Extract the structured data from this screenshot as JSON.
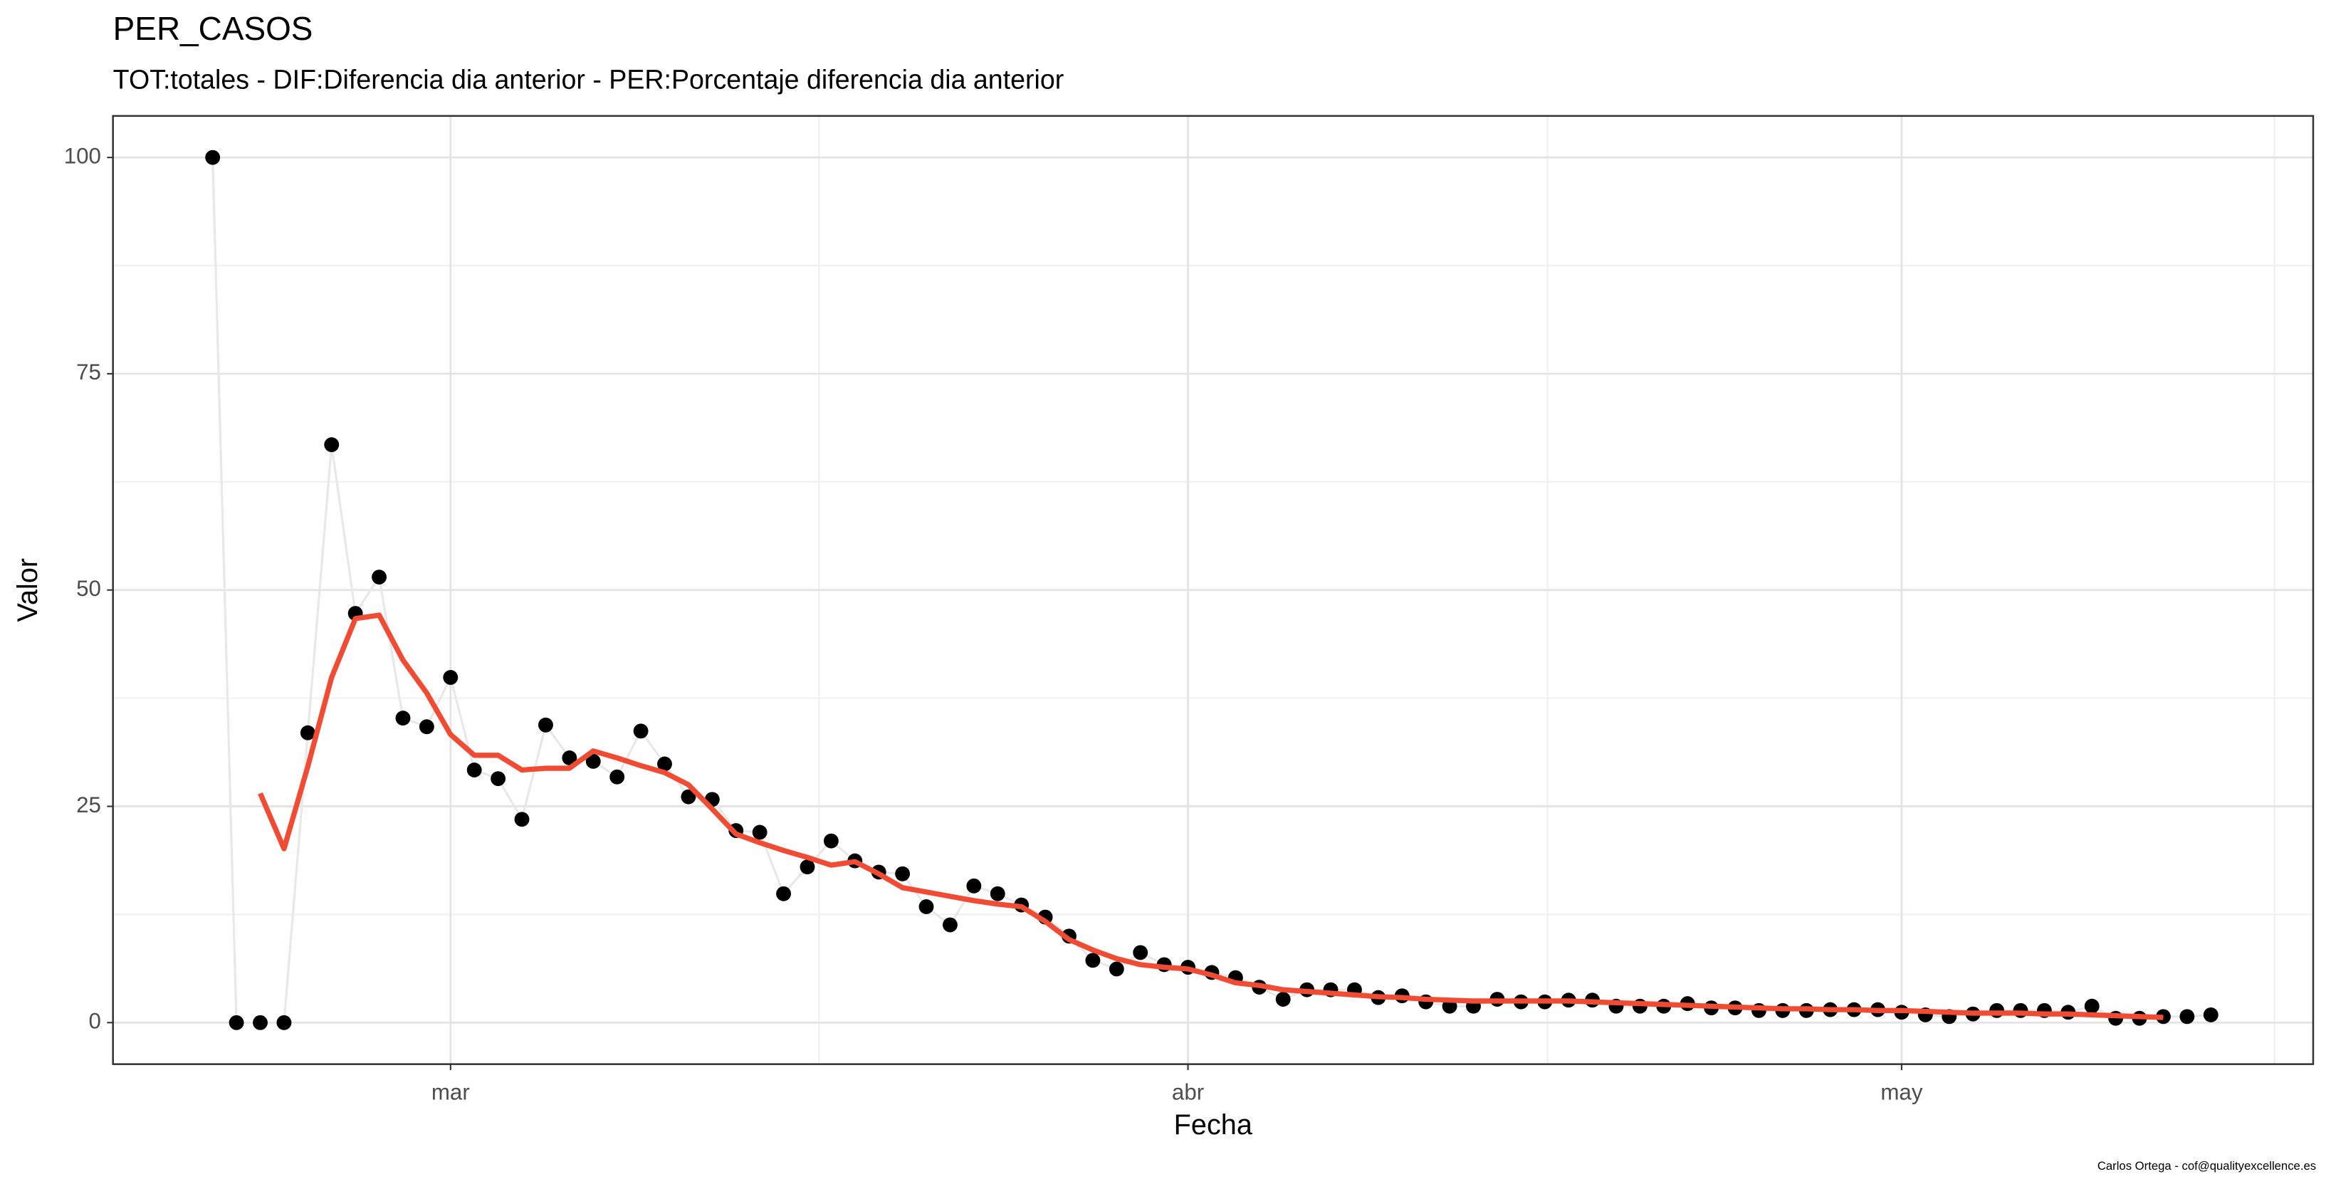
{
  "chart_data": {
    "type": "line",
    "title": "PER_CASOS",
    "subtitle": "TOT:totales - DIF:Diferencia dia anterior - PER:Porcentaje diferencia dia anterior",
    "x_label": "Fecha",
    "y_label": "Valor",
    "caption": "Carlos Ortega - cof@qualityexcellence.es",
    "categories": [
      null,
      null,
      null,
      null,
      null,
      null,
      null,
      null,
      null,
      null,
      "mar",
      null,
      null,
      null,
      null,
      null,
      null,
      null,
      null,
      null,
      null,
      null,
      null,
      null,
      null,
      null,
      null,
      null,
      null,
      null,
      null,
      null,
      null,
      null,
      null,
      null,
      null,
      null,
      null,
      null,
      null,
      "abr",
      null,
      null,
      null,
      null,
      null,
      null,
      null,
      null,
      null,
      null,
      null,
      null,
      null,
      null,
      null,
      null,
      null,
      null,
      null,
      null,
      null,
      null,
      null,
      null,
      null,
      null,
      null,
      null,
      null,
      "may",
      null,
      null,
      null,
      null,
      null,
      null,
      null,
      null,
      null,
      null,
      null,
      null,
      null
    ],
    "series": [
      {
        "color": "#000000",
        "line_color": "#e8e8e8",
        "markers": true,
        "values": [
          100,
          0,
          0,
          0,
          33.5,
          66.8,
          47.3,
          51.5,
          35.2,
          34.2,
          39.9,
          29.2,
          28.2,
          23.5,
          34.4,
          30.6,
          30.2,
          28.4,
          33.7,
          29.9,
          26.1,
          25.8,
          22.2,
          22.0,
          14.9,
          18.0,
          21.0,
          18.7,
          17.4,
          17.2,
          13.4,
          11.3,
          15.8,
          14.9,
          13.6,
          12.2,
          10.0,
          7.2,
          6.2,
          8.1,
          6.7,
          6.4,
          5.8,
          5.2,
          4.1,
          2.7,
          3.8,
          3.8,
          3.8,
          2.9,
          3.1,
          2.4,
          1.9,
          1.9,
          2.7,
          2.4,
          2.4,
          2.6,
          2.6,
          1.9,
          1.9,
          1.9,
          2.2,
          1.7,
          1.7,
          1.4,
          1.4,
          1.4,
          1.5,
          1.5,
          1.5,
          1.2,
          0.9,
          0.7,
          1.0,
          1.4,
          1.4,
          1.4,
          1.2,
          1.9,
          0.5,
          0.5,
          0.7,
          0.7,
          0.9
        ]
      },
      {
        "color": "#f24b33",
        "line_color": "#f24b33",
        "markers": false,
        "values": [
          null,
          null,
          26.5,
          20.1,
          29.6,
          39.9,
          46.7,
          47.1,
          41.9,
          38.1,
          33.3,
          30.9,
          30.9,
          29.2,
          29.4,
          29.4,
          31.4,
          30.6,
          29.7,
          28.9,
          27.5,
          24.7,
          21.8,
          20.8,
          19.9,
          19.1,
          18.2,
          18.6,
          17.2,
          15.6,
          15.1,
          14.6,
          14.1,
          13.7,
          13.4,
          11.7,
          9.6,
          8.4,
          7.4,
          6.7,
          6.4,
          6.2,
          5.5,
          4.6,
          4.3,
          3.8,
          3.6,
          3.4,
          3.2,
          3.0,
          2.9,
          2.7,
          2.6,
          2.5,
          2.5,
          2.5,
          2.5,
          2.5,
          2.4,
          2.3,
          2.2,
          2.1,
          2.0,
          1.9,
          1.8,
          1.7,
          1.6,
          1.6,
          1.5,
          1.5,
          1.4,
          1.4,
          1.3,
          1.2,
          1.1,
          1.1,
          1.1,
          1.0,
          1.0,
          0.9,
          0.8,
          0.7,
          0.6,
          null,
          null
        ]
      }
    ],
    "ylim": [
      -4.8,
      104.8
    ],
    "yticks": [
      0,
      25,
      50,
      75,
      100
    ],
    "grid": true
  }
}
